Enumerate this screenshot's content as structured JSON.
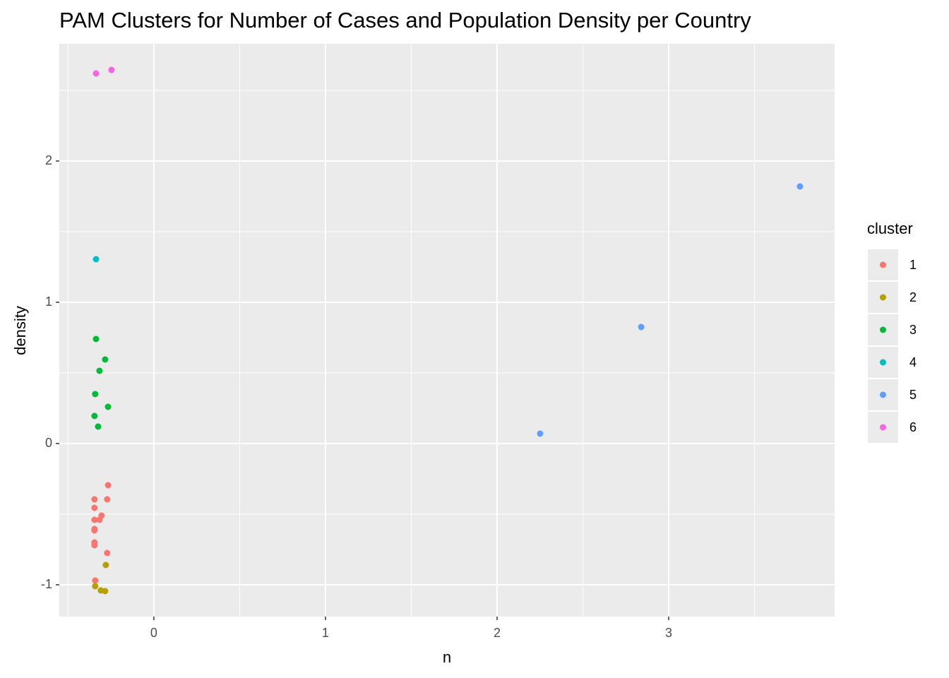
{
  "chart_data": {
    "type": "scatter",
    "title": "PAM Clusters for Number of Cases and Population Density per Country",
    "x_label": "n",
    "y_label": "density",
    "legend_title": "cluster",
    "xlim": [
      -0.551,
      3.967
    ],
    "ylim": [
      -1.225,
      2.83
    ],
    "xticks": [
      0,
      1,
      2,
      3
    ],
    "yticks": [
      -1,
      0,
      1,
      2
    ],
    "grid": true,
    "minor_grid": true,
    "legend_position": "right",
    "series": [
      {
        "name": "1",
        "color": "#F8766D",
        "x": [
          -0.267,
          -0.272,
          -0.346,
          -0.346,
          -0.305,
          -0.317,
          -0.346,
          -0.346,
          -0.346,
          -0.346,
          -0.346,
          -0.272,
          -0.342
        ],
        "y": [
          -0.295,
          -0.395,
          -0.395,
          -0.455,
          -0.51,
          -0.54,
          -0.54,
          -0.605,
          -0.615,
          -0.7,
          -0.72,
          -0.775,
          -0.97
        ]
      },
      {
        "name": "2",
        "color": "#B79F00",
        "x": [
          -0.28,
          -0.342,
          -0.309,
          -0.284
        ],
        "y": [
          -0.86,
          -1.01,
          -1.04,
          -1.045
        ]
      },
      {
        "name": "3",
        "color": "#00BA38",
        "x": [
          -0.337,
          -0.284,
          -0.317,
          -0.342,
          -0.267,
          -0.346,
          -0.325
        ],
        "y": [
          0.74,
          0.595,
          0.515,
          0.35,
          0.26,
          0.195,
          0.12
        ]
      },
      {
        "name": "4",
        "color": "#00BFC4",
        "x": [
          -0.337
        ],
        "y": [
          1.305
        ]
      },
      {
        "name": "5",
        "color": "#619CFF",
        "x": [
          2.251,
          2.84,
          3.765
        ],
        "y": [
          0.07,
          0.825,
          1.82
        ]
      },
      {
        "name": "6",
        "color": "#F564E3",
        "x": [
          -0.337,
          -0.247
        ],
        "y": [
          2.62,
          2.645
        ]
      }
    ]
  }
}
